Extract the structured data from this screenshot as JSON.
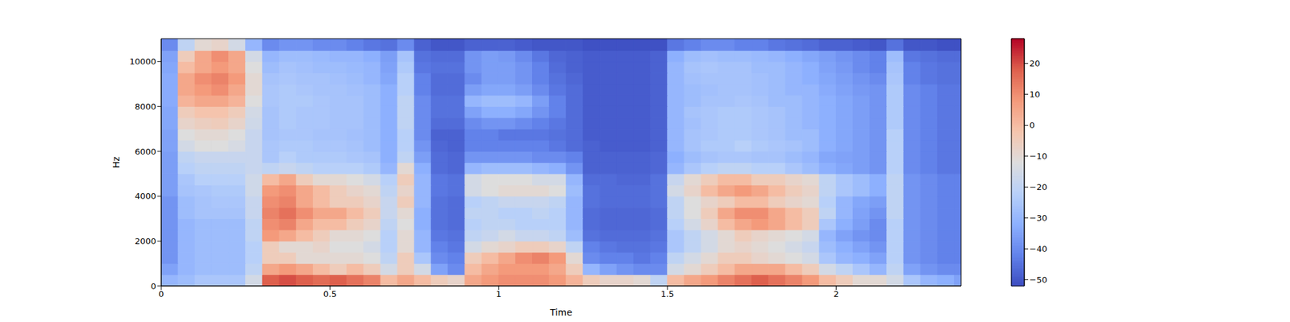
{
  "chart_data": {
    "type": "heatmap",
    "x_label": "Time",
    "y_label": "Hz",
    "xlim": [
      0,
      2.37
    ],
    "ylim": [
      0,
      11025
    ],
    "xticks": [
      0,
      0.5,
      1,
      1.5,
      2
    ],
    "yticks": [
      0,
      2000,
      4000,
      6000,
      8000,
      10000
    ],
    "x_edges": [
      0,
      0.05,
      0.1,
      0.15,
      0.2,
      0.25,
      0.3,
      0.35,
      0.4,
      0.45,
      0.5,
      0.55,
      0.6,
      0.65,
      0.7,
      0.75,
      0.8,
      0.85,
      0.9,
      0.95,
      1,
      1.05,
      1.1,
      1.15,
      1.2,
      1.25,
      1.3,
      1.35,
      1.4,
      1.45,
      1.5,
      1.55,
      1.6,
      1.65,
      1.7,
      1.75,
      1.8,
      1.85,
      1.9,
      1.95,
      2,
      2.05,
      2.1,
      2.15,
      2.2,
      2.25,
      2.3,
      2.35,
      2.37
    ],
    "y_edges": [
      0,
      500,
      1000,
      1500,
      2000,
      2500,
      3000,
      3500,
      4000,
      4500,
      5000,
      5500,
      6000,
      6500,
      7000,
      7500,
      8000,
      8500,
      9000,
      9500,
      10000,
      10500,
      11025
    ],
    "cells": [
      [
        -30,
        -28,
        -25,
        -25,
        -25,
        -15,
        18,
        20,
        18,
        16,
        18,
        15,
        12,
        0,
        5,
        0,
        -5,
        -8,
        5,
        8,
        10,
        10,
        10,
        8,
        2,
        -5,
        -8,
        -8,
        -10,
        -20,
        0,
        5,
        8,
        12,
        15,
        18,
        15,
        12,
        8,
        0,
        -5,
        -10,
        -10,
        -15,
        -25,
        -30,
        -32,
        -35
      ],
      [
        -35,
        -30,
        -28,
        -28,
        -28,
        -20,
        5,
        8,
        5,
        0,
        -5,
        0,
        -5,
        -15,
        -5,
        -15,
        -35,
        -40,
        0,
        5,
        8,
        8,
        8,
        5,
        -5,
        -30,
        -35,
        -38,
        -40,
        -40,
        -15,
        -10,
        -5,
        0,
        5,
        5,
        5,
        0,
        -5,
        -15,
        -20,
        -25,
        -30,
        -20,
        -35,
        -38,
        -40,
        -40
      ],
      [
        -38,
        -30,
        -28,
        -28,
        -28,
        -22,
        -5,
        -5,
        -10,
        -10,
        -10,
        -10,
        -12,
        -20,
        -5,
        -25,
        -40,
        -42,
        -5,
        0,
        5,
        10,
        12,
        8,
        -10,
        -40,
        -42,
        -42,
        -44,
        -42,
        -20,
        -15,
        -10,
        -5,
        -5,
        -8,
        -10,
        -12,
        -15,
        -25,
        -30,
        -32,
        -35,
        -22,
        -38,
        -40,
        -42,
        -42
      ],
      [
        -38,
        -30,
        -28,
        -28,
        -28,
        -22,
        -5,
        -10,
        -10,
        -8,
        -12,
        -12,
        -15,
        -22,
        -10,
        -30,
        -42,
        -44,
        -15,
        -10,
        -8,
        -5,
        -5,
        -8,
        -20,
        -42,
        -44,
        -45,
        -45,
        -44,
        -25,
        -20,
        -15,
        -10,
        -8,
        -10,
        -12,
        -15,
        -18,
        -28,
        -32,
        -35,
        -38,
        -22,
        -38,
        -40,
        -42,
        -42
      ],
      [
        -38,
        -30,
        -28,
        -28,
        -28,
        -20,
        8,
        5,
        0,
        -5,
        -10,
        -10,
        -12,
        -22,
        -10,
        -30,
        -44,
        -45,
        -20,
        -18,
        -15,
        -18,
        -18,
        -20,
        -28,
        -45,
        -46,
        -46,
        -46,
        -45,
        -25,
        -20,
        -15,
        -10,
        -5,
        -8,
        -10,
        -12,
        -15,
        -30,
        -35,
        -38,
        -40,
        -22,
        -38,
        -40,
        -42,
        -42
      ],
      [
        -38,
        -30,
        -28,
        -28,
        -28,
        -20,
        10,
        12,
        5,
        0,
        0,
        -5,
        -8,
        -20,
        -12,
        -32,
        -45,
        -46,
        -22,
        -20,
        -20,
        -22,
        -22,
        -22,
        -30,
        -46,
        -47,
        -47,
        -47,
        -46,
        -22,
        -15,
        -8,
        0,
        5,
        8,
        5,
        0,
        -5,
        -25,
        -32,
        -36,
        -40,
        -22,
        -38,
        -40,
        -42,
        -42
      ],
      [
        -38,
        -28,
        -26,
        -26,
        -26,
        -18,
        12,
        15,
        10,
        5,
        5,
        0,
        -5,
        -18,
        -10,
        -32,
        -45,
        -46,
        -20,
        -20,
        -22,
        -22,
        -20,
        -22,
        -30,
        -46,
        -47,
        -47,
        -47,
        -46,
        -20,
        -12,
        -5,
        5,
        10,
        10,
        5,
        0,
        -5,
        -20,
        -30,
        -35,
        -38,
        -20,
        -38,
        -40,
        -42,
        -42
      ],
      [
        -38,
        -28,
        -26,
        -25,
        -25,
        -18,
        10,
        12,
        5,
        0,
        -5,
        -5,
        -8,
        -18,
        -5,
        -30,
        -45,
        -46,
        -22,
        -20,
        -18,
        -18,
        -18,
        -20,
        -30,
        -45,
        -46,
        -46,
        -46,
        -45,
        -20,
        -12,
        -8,
        -5,
        0,
        0,
        -5,
        -8,
        -10,
        -22,
        -30,
        -34,
        -36,
        -20,
        -38,
        -40,
        -42,
        -42
      ],
      [
        -36,
        -26,
        -25,
        -24,
        -24,
        -16,
        8,
        10,
        5,
        0,
        -5,
        -8,
        -10,
        -20,
        -8,
        -30,
        -44,
        -45,
        -15,
        -12,
        -10,
        -10,
        -10,
        -12,
        -28,
        -45,
        -46,
        -46,
        -46,
        -45,
        -15,
        -8,
        0,
        5,
        8,
        5,
        0,
        -5,
        -8,
        -20,
        -25,
        -28,
        -32,
        -20,
        -38,
        -40,
        -42,
        -42
      ],
      [
        -36,
        -25,
        -22,
        -22,
        -22,
        -16,
        0,
        5,
        -5,
        -10,
        -10,
        -12,
        -15,
        -22,
        -5,
        -30,
        -44,
        -45,
        -15,
        -12,
        -12,
        -12,
        -15,
        -15,
        -30,
        -46,
        -46,
        -47,
        -47,
        -45,
        -18,
        -10,
        -5,
        0,
        0,
        -5,
        -5,
        -8,
        -10,
        -20,
        -25,
        -28,
        -32,
        -20,
        -38,
        -40,
        -42,
        -42
      ],
      [
        -36,
        -22,
        -20,
        -20,
        -20,
        -18,
        -20,
        -18,
        -20,
        -22,
        -22,
        -22,
        -24,
        -30,
        -10,
        -32,
        -46,
        -47,
        -30,
        -28,
        -28,
        -28,
        -30,
        -32,
        -38,
        -48,
        -48,
        -48,
        -48,
        -47,
        -30,
        -25,
        -22,
        -20,
        -20,
        -22,
        -22,
        -25,
        -28,
        -32,
        -34,
        -36,
        -38,
        -22,
        -40,
        -42,
        -44,
        -44
      ],
      [
        -36,
        -20,
        -18,
        -18,
        -18,
        -18,
        -25,
        -22,
        -24,
        -24,
        -24,
        -25,
        -26,
        -32,
        -20,
        -36,
        -46,
        -47,
        -38,
        -38,
        -38,
        -38,
        -40,
        -40,
        -42,
        -48,
        -48,
        -48,
        -48,
        -47,
        -32,
        -28,
        -26,
        -25,
        -25,
        -26,
        -26,
        -28,
        -30,
        -34,
        -35,
        -36,
        -38,
        -22,
        -40,
        -42,
        -44,
        -44
      ],
      [
        -35,
        -15,
        -12,
        -12,
        -14,
        -18,
        -25,
        -24,
        -24,
        -25,
        -25,
        -26,
        -28,
        -32,
        -22,
        -38,
        -47,
        -48,
        -42,
        -42,
        -42,
        -42,
        -42,
        -44,
        -46,
        -48,
        -49,
        -49,
        -49,
        -48,
        -30,
        -26,
        -24,
        -24,
        -22,
        -24,
        -25,
        -26,
        -28,
        -32,
        -34,
        -36,
        -38,
        -22,
        -40,
        -42,
        -44,
        -44
      ],
      [
        -35,
        -12,
        -10,
        -10,
        -12,
        -18,
        -26,
        -25,
        -25,
        -26,
        -26,
        -27,
        -28,
        -32,
        -22,
        -40,
        -48,
        -48,
        -42,
        -42,
        -44,
        -44,
        -44,
        -45,
        -46,
        -49,
        -49,
        -49,
        -49,
        -48,
        -30,
        -26,
        -25,
        -24,
        -24,
        -25,
        -26,
        -28,
        -28,
        -32,
        -34,
        -36,
        -38,
        -22,
        -40,
        -42,
        -44,
        -44
      ],
      [
        -34,
        -8,
        -6,
        -5,
        -8,
        -16,
        -26,
        -24,
        -25,
        -25,
        -26,
        -26,
        -28,
        -32,
        -20,
        -40,
        -46,
        -46,
        -40,
        -38,
        -38,
        -40,
        -42,
        -44,
        -46,
        -49,
        -49,
        -49,
        -49,
        -48,
        -30,
        -27,
        -25,
        -24,
        -24,
        -25,
        -26,
        -28,
        -30,
        -32,
        -34,
        -36,
        -38,
        -24,
        -40,
        -42,
        -44,
        -44
      ],
      [
        -34,
        -5,
        -2,
        -2,
        -5,
        -15,
        -26,
        -24,
        -25,
        -25,
        -26,
        -26,
        -28,
        -32,
        -20,
        -40,
        -45,
        -45,
        -35,
        -32,
        -32,
        -34,
        -38,
        -42,
        -46,
        -49,
        -49,
        -49,
        -49,
        -48,
        -30,
        -26,
        -25,
        -24,
        -24,
        -25,
        -26,
        -28,
        -30,
        -32,
        -34,
        -36,
        -38,
        -24,
        -40,
        -42,
        -44,
        -44
      ],
      [
        -33,
        2,
        5,
        5,
        2,
        -12,
        -25,
        -24,
        -24,
        -25,
        -26,
        -26,
        -28,
        -32,
        -20,
        -40,
        -45,
        -45,
        -30,
        -28,
        -28,
        -30,
        -36,
        -42,
        -46,
        -49,
        -49,
        -49,
        -49,
        -48,
        -30,
        -28,
        -26,
        -26,
        -25,
        -26,
        -28,
        -28,
        -30,
        -32,
        -34,
        -36,
        -38,
        -24,
        -40,
        -42,
        -44,
        -44
      ],
      [
        -33,
        5,
        8,
        10,
        5,
        -10,
        -25,
        -24,
        -25,
        -26,
        -26,
        -27,
        -28,
        -32,
        -22,
        -42,
        -46,
        -46,
        -36,
        -34,
        -34,
        -36,
        -40,
        -44,
        -46,
        -49,
        -49,
        -49,
        -49,
        -48,
        -30,
        -28,
        -27,
        -26,
        -26,
        -27,
        -28,
        -30,
        -30,
        -33,
        -35,
        -37,
        -38,
        -24,
        -40,
        -42,
        -44,
        -44
      ],
      [
        -33,
        5,
        10,
        12,
        8,
        -10,
        -26,
        -25,
        -26,
        -26,
        -27,
        -28,
        -30,
        -34,
        -22,
        -42,
        -46,
        -46,
        -40,
        -36,
        -36,
        -38,
        -42,
        -45,
        -47,
        -49,
        -49,
        -49,
        -49,
        -48,
        -30,
        -27,
        -26,
        -26,
        -26,
        -27,
        -28,
        -30,
        -32,
        -34,
        -36,
        -38,
        -40,
        -25,
        -42,
        -44,
        -45,
        -45
      ],
      [
        -34,
        0,
        5,
        8,
        5,
        -12,
        -28,
        -26,
        -27,
        -28,
        -28,
        -29,
        -30,
        -35,
        -24,
        -44,
        -45,
        -45,
        -38,
        -36,
        -36,
        -38,
        -42,
        -46,
        -48,
        -49,
        -49,
        -49,
        -49,
        -48,
        -30,
        -26,
        -25,
        -26,
        -26,
        -28,
        -28,
        -30,
        -32,
        -35,
        -37,
        -40,
        -42,
        -26,
        -42,
        -44,
        -45,
        -45
      ],
      [
        -35,
        -5,
        5,
        10,
        5,
        -15,
        -30,
        -28,
        -28,
        -29,
        -30,
        -30,
        -32,
        -36,
        -26,
        -45,
        -46,
        -46,
        -38,
        -36,
        -37,
        -40,
        -44,
        -47,
        -48,
        -49,
        -49,
        -49,
        -49,
        -48,
        -32,
        -28,
        -27,
        -28,
        -28,
        -29,
        -30,
        -32,
        -34,
        -36,
        -38,
        -40,
        -42,
        -28,
        -44,
        -45,
        -46,
        -46
      ],
      [
        -40,
        -20,
        -10,
        -8,
        -15,
        -30,
        -40,
        -38,
        -38,
        -40,
        -40,
        -42,
        -44,
        -45,
        -40,
        -48,
        -50,
        -50,
        -48,
        -48,
        -48,
        -49,
        -50,
        -50,
        -50,
        -51,
        -51,
        -51,
        -51,
        -51,
        -44,
        -42,
        -40,
        -40,
        -42,
        -42,
        -44,
        -45,
        -46,
        -48,
        -48,
        -49,
        -50,
        -45,
        -50,
        -50,
        -51,
        -51
      ]
    ],
    "colorbar": {
      "range": [
        -52,
        28
      ],
      "ticks": [
        {
          "value": -50,
          "label": "−50"
        },
        {
          "value": -40,
          "label": "−40"
        },
        {
          "value": -30,
          "label": "−30"
        },
        {
          "value": -20,
          "label": "−20"
        },
        {
          "value": -10,
          "label": "−10"
        },
        0,
        10,
        20
      ]
    }
  }
}
